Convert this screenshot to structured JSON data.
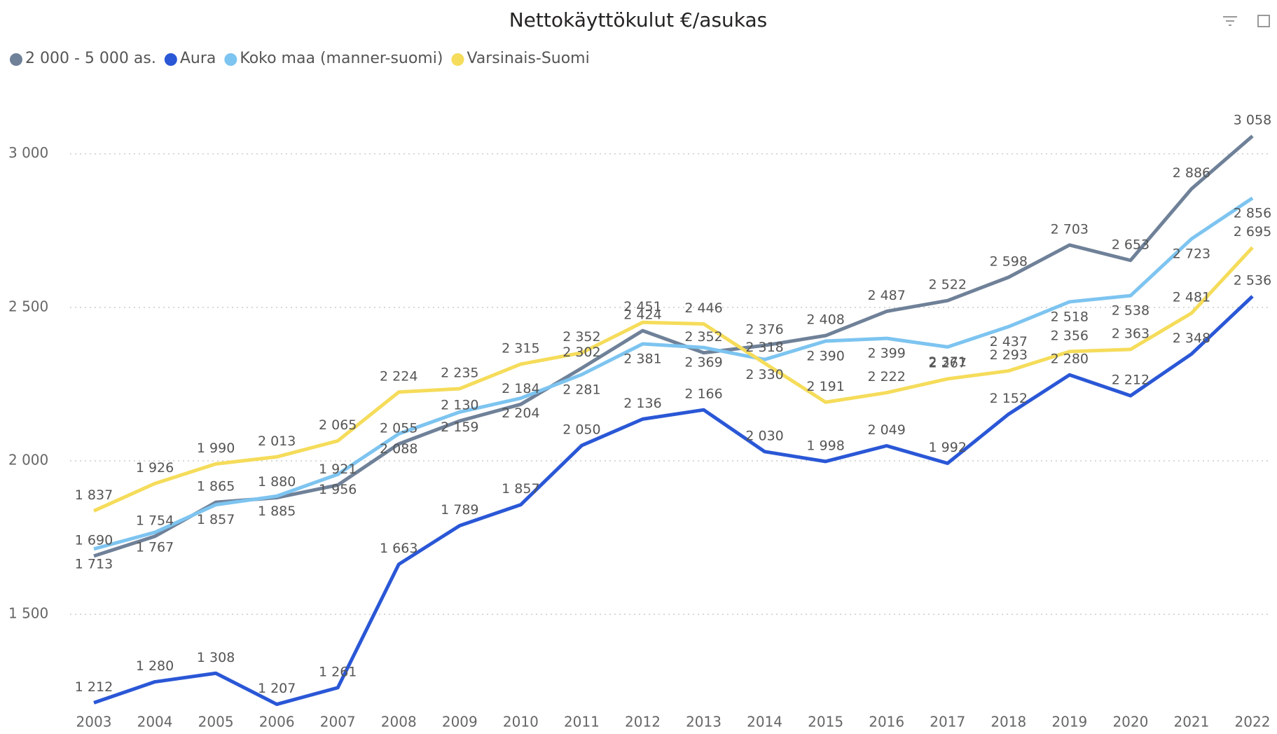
{
  "chart_data": {
    "type": "line",
    "title": "Nettokäyttökulut €/asukas",
    "x": [
      2003,
      2004,
      2005,
      2006,
      2007,
      2008,
      2009,
      2010,
      2011,
      2012,
      2013,
      2014,
      2015,
      2016,
      2017,
      2018,
      2019,
      2020,
      2021,
      2022
    ],
    "ylim": [
      1190,
      3200
    ],
    "yticks": [
      {
        "value": 1500,
        "label": "1 500"
      },
      {
        "value": 2000,
        "label": "2 000"
      },
      {
        "value": 2500,
        "label": "2 500"
      },
      {
        "value": 3000,
        "label": "3 000"
      }
    ],
    "grid": true,
    "legend": "top-left",
    "series": [
      {
        "name": "2 000 - 5 000 as.",
        "color": "#6f8198",
        "values": [
          1690,
          1754,
          1865,
          1880,
          1921,
          2055,
          2130,
          2184,
          2302,
          2424,
          2352,
          2376,
          2408,
          2487,
          2522,
          2598,
          2703,
          2653,
          2886,
          3058
        ],
        "value_labels": [
          "1 690",
          "1 754",
          "1 865",
          "1 880",
          "1 921",
          "2 055",
          "2 130",
          "2 184",
          "2 302",
          "2 424",
          "2 352",
          "2 376",
          "2 408",
          "2 487",
          "2 522",
          "2 598",
          "2 703",
          "2 653",
          "2 886",
          "3 058"
        ]
      },
      {
        "name": "Aura",
        "color": "#2a57d6",
        "values": [
          1212,
          1280,
          1308,
          1207,
          1261,
          1663,
          1789,
          1857,
          2050,
          2136,
          2166,
          2030,
          1998,
          2049,
          1992,
          2152,
          2280,
          2212,
          2348,
          2536
        ],
        "value_labels": [
          "1 212",
          "1 280",
          "1 308",
          "1 207",
          "1 261",
          "1 663",
          "1 789",
          "1 857",
          "2 050",
          "2 136",
          "2 166",
          "2 030",
          "1 998",
          "2 049",
          "1 992",
          "2 152",
          "2 280",
          "2 212",
          "2 348",
          "2 536"
        ]
      },
      {
        "name": "Koko maa (manner-suomi)",
        "color": "#7dc4f0",
        "values": [
          1713,
          1767,
          1857,
          1885,
          1956,
          2088,
          2159,
          2204,
          2281,
          2381,
          2369,
          2330,
          2390,
          2399,
          2371,
          2437,
          2518,
          2538,
          2723,
          2856
        ],
        "value_labels": [
          "1 713",
          "1 767",
          "1 857",
          "1 885",
          "1 956",
          "2 088",
          "2 159",
          "2 204",
          "2 281",
          "2 381",
          "2 369",
          "2 330",
          "2 390",
          "2 399",
          "2 371",
          "2 437",
          "2 518",
          "2 538",
          "2 723",
          "2 856"
        ]
      },
      {
        "name": "Varsinais-Suomi",
        "color": "#f5dc5a",
        "values": [
          1837,
          1926,
          1990,
          2013,
          2065,
          2224,
          2235,
          2315,
          2352,
          2451,
          2446,
          2318,
          2191,
          2222,
          2267,
          2293,
          2356,
          2363,
          2481,
          2695
        ],
        "value_labels": [
          "1 837",
          "1 926",
          "1 990",
          "2 013",
          "2 065",
          "2 224",
          "2 235",
          "2 315",
          "2 352",
          "2 451",
          "2 446",
          "2 318",
          "2 191",
          "2 222",
          "2 267",
          "2 293",
          "2 356",
          "2 363",
          "2 481",
          "2 695"
        ]
      }
    ]
  }
}
